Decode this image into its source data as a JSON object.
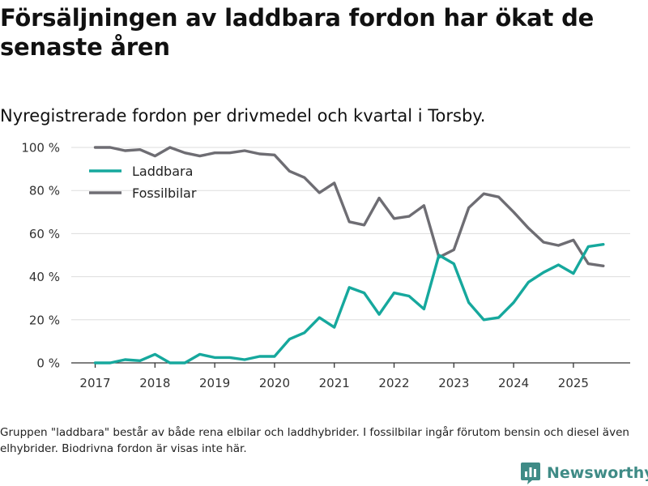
{
  "header": {
    "title": "Försäljningen av laddbara fordon har ökat de senaste åren",
    "subtitle": "Nyregistrerade fordon per drivmedel och kvartal i Torsby."
  },
  "footnote": "Gruppen \"laddbara\" består av både rena elbilar och laddhybrider. I fossilbilar ingår förutom bensin och diesel även elhybrider. Biodrivna fordon är visas inte här.",
  "brand": {
    "name": "Newsworthy",
    "icon": "newsworthy-logo-icon"
  },
  "colors": {
    "laddbara": "#16a89d",
    "fossil": "#6e6d73",
    "grid": "#dddddd",
    "axis": "#333333",
    "brand": "#3f8b86"
  },
  "chart_data": {
    "type": "line",
    "x": [
      2017.0,
      2017.25,
      2017.5,
      2017.75,
      2018.0,
      2018.25,
      2018.5,
      2018.75,
      2019.0,
      2019.25,
      2019.5,
      2019.75,
      2020.0,
      2020.25,
      2020.5,
      2020.75,
      2021.0,
      2021.25,
      2021.5,
      2021.75,
      2022.0,
      2022.25,
      2022.5,
      2022.75,
      2023.0,
      2023.25,
      2023.5,
      2023.75,
      2024.0,
      2024.25,
      2024.5,
      2024.75,
      2025.0,
      2025.25,
      2025.5
    ],
    "series": [
      {
        "name": "Laddbara",
        "color": "#16a89d",
        "values": [
          0,
          0,
          1.5,
          1,
          4,
          0,
          0,
          4,
          2.5,
          2.5,
          1.5,
          3,
          3,
          11,
          14,
          21,
          16.5,
          35,
          32.5,
          22.5,
          32.5,
          31,
          25,
          50,
          46,
          28,
          20,
          21,
          28,
          37.5,
          42,
          45.5,
          41.5,
          54,
          55
        ]
      },
      {
        "name": "Fossilbilar",
        "color": "#6e6d73",
        "values": [
          100,
          100,
          98.5,
          99,
          96,
          100,
          97.5,
          96,
          97.5,
          97.5,
          98.5,
          97,
          96.5,
          89,
          86,
          79,
          83.5,
          65.5,
          64,
          76.5,
          67,
          68,
          73,
          49,
          52.5,
          72,
          78.5,
          77,
          70,
          62.5,
          56,
          54.5,
          57,
          46,
          45
        ]
      }
    ],
    "title": "Nyregistrerade fordon per drivmedel och kvartal i Torsby.",
    "xlabel": "",
    "ylabel": "",
    "xlim": [
      2016.6,
      2025.95
    ],
    "ylim": [
      0,
      100
    ],
    "yticks": [
      0,
      20,
      40,
      60,
      80,
      100
    ],
    "ytick_labels": [
      "0 %",
      "20 %",
      "40 %",
      "60 %",
      "80 %",
      "100 %"
    ],
    "xticks": [
      2017,
      2018,
      2019,
      2020,
      2021,
      2022,
      2023,
      2024,
      2025
    ],
    "xtick_labels": [
      "2017",
      "2018",
      "2019",
      "2020",
      "2021",
      "2022",
      "2023",
      "2024",
      "2025"
    ],
    "grid": true,
    "legend": "top-left"
  }
}
